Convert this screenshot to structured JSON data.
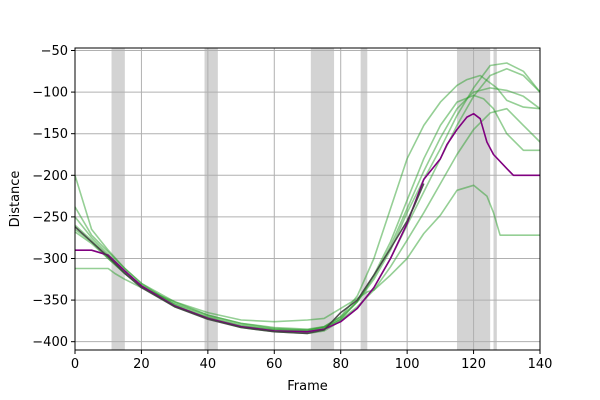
{
  "chart_data": {
    "type": "line",
    "xlabel": "Frame",
    "ylabel": "Distance",
    "xlim": [
      0,
      140
    ],
    "ylim": [
      -410,
      -47
    ],
    "grid": true,
    "xticks": [
      0,
      20,
      40,
      60,
      80,
      100,
      120,
      140
    ],
    "yticks": [
      -400,
      -350,
      -300,
      -250,
      -200,
      -150,
      -100,
      -50
    ],
    "shaded_regions": [
      [
        11,
        15
      ],
      [
        39,
        43
      ],
      [
        71,
        78
      ],
      [
        86,
        88
      ],
      [
        115,
        125
      ],
      [
        126,
        127
      ]
    ],
    "colors": {
      "green": "#2ca02c",
      "purple": "#800080",
      "dark": "#404040",
      "shade": "#d3d3d3",
      "grid": "#b0b0b0"
    },
    "series": [
      {
        "color": "green",
        "x": [
          0,
          5,
          10,
          15,
          20,
          30,
          40,
          50,
          60,
          70,
          75,
          80,
          85,
          90,
          95,
          100,
          105,
          110,
          115,
          118,
          122,
          127,
          130,
          135,
          140
        ],
        "y": [
          -200,
          -265,
          -290,
          -312,
          -330,
          -352,
          -368,
          -378,
          -383,
          -385,
          -382,
          -370,
          -345,
          -300,
          -240,
          -180,
          -140,
          -112,
          -92,
          -85,
          -80,
          -95,
          -110,
          -118,
          -120
        ]
      },
      {
        "color": "green",
        "x": [
          0,
          5,
          10,
          15,
          20,
          30,
          40,
          50,
          60,
          70,
          75,
          80,
          85,
          90,
          95,
          100,
          105,
          110,
          115,
          120,
          125,
          130,
          135,
          140
        ],
        "y": [
          -238,
          -272,
          -292,
          -312,
          -330,
          -356,
          -372,
          -382,
          -386,
          -387,
          -383,
          -372,
          -352,
          -325,
          -290,
          -245,
          -205,
          -168,
          -128,
          -95,
          -68,
          -65,
          -75,
          -100
        ]
      },
      {
        "color": "green",
        "x": [
          0,
          5,
          10,
          15,
          20,
          30,
          40,
          50,
          60,
          70,
          75,
          80,
          85,
          90,
          95,
          100,
          105,
          110,
          115,
          120,
          125,
          130,
          135,
          140
        ],
        "y": [
          -250,
          -275,
          -295,
          -315,
          -333,
          -358,
          -372,
          -383,
          -388,
          -390,
          -387,
          -375,
          -360,
          -335,
          -300,
          -260,
          -220,
          -180,
          -140,
          -105,
          -80,
          -72,
          -80,
          -100
        ]
      },
      {
        "color": "green",
        "x": [
          0,
          5,
          10,
          15,
          20,
          30,
          40,
          50,
          60,
          70,
          75,
          80,
          85,
          90,
          95,
          100,
          105,
          110,
          115,
          120,
          125,
          130,
          135,
          140
        ],
        "y": [
          -260,
          -278,
          -297,
          -316,
          -333,
          -355,
          -370,
          -380,
          -385,
          -386,
          -382,
          -370,
          -352,
          -322,
          -285,
          -240,
          -195,
          -155,
          -120,
          -100,
          -95,
          -98,
          -105,
          -120
        ]
      },
      {
        "color": "green",
        "x": [
          0,
          5,
          10,
          15,
          20,
          30,
          40,
          50,
          60,
          70,
          75,
          80,
          85,
          90,
          95,
          100,
          105,
          110,
          115,
          120,
          123,
          126,
          130,
          135,
          140
        ],
        "y": [
          -265,
          -280,
          -300,
          -318,
          -334,
          -357,
          -371,
          -381,
          -386,
          -388,
          -385,
          -373,
          -352,
          -320,
          -280,
          -230,
          -180,
          -140,
          -112,
          -104,
          -108,
          -120,
          -150,
          -170,
          -170
        ]
      },
      {
        "color": "green",
        "x": [
          0,
          5,
          10,
          15,
          20,
          30,
          40,
          50,
          60,
          70,
          75,
          80,
          85,
          90,
          95,
          100,
          105,
          110,
          115,
          120,
          125,
          130,
          135,
          140
        ],
        "y": [
          -268,
          -282,
          -300,
          -318,
          -332,
          -354,
          -368,
          -378,
          -384,
          -386,
          -383,
          -374,
          -358,
          -338,
          -310,
          -278,
          -245,
          -210,
          -175,
          -145,
          -125,
          -120,
          -140,
          -160
        ]
      },
      {
        "color": "green",
        "x": [
          0,
          5,
          10,
          12,
          15,
          20,
          30,
          40,
          50,
          60,
          70,
          75,
          80,
          85,
          88,
          90,
          95,
          100,
          105,
          110,
          115,
          120,
          124,
          126,
          128,
          130,
          140
        ],
        "y": [
          -312,
          -312,
          -312,
          -318,
          -325,
          -335,
          -352,
          -365,
          -374,
          -376,
          -374,
          -372,
          -360,
          -348,
          -340,
          -338,
          -320,
          -300,
          -270,
          -248,
          -218,
          -212,
          -225,
          -245,
          -272,
          -272,
          -272
        ]
      },
      {
        "color": "purple",
        "x": [
          0,
          5,
          10,
          15,
          20,
          30,
          40,
          50,
          60,
          70,
          75,
          80,
          85,
          90,
          95,
          100,
          105,
          110,
          112,
          115,
          118,
          120,
          122,
          124,
          126,
          130,
          132,
          135,
          140
        ],
        "y": [
          -290,
          -290,
          -296,
          -315,
          -333,
          -357,
          -372,
          -382,
          -387,
          -388,
          -385,
          -376,
          -360,
          -335,
          -300,
          -258,
          -205,
          -180,
          -163,
          -145,
          -130,
          -126,
          -132,
          -160,
          -175,
          -192,
          -200,
          -200,
          -200
        ]
      },
      {
        "color": "dark",
        "x": [
          0,
          5,
          10,
          15,
          20,
          30,
          40,
          50,
          60,
          70,
          75,
          80,
          85,
          90,
          95,
          100,
          102,
          105
        ],
        "y": [
          -262,
          -280,
          -298,
          -318,
          -335,
          -358,
          -373,
          -383,
          -388,
          -390,
          -386,
          -365,
          -350,
          -320,
          -288,
          -255,
          -238,
          -210
        ]
      }
    ]
  }
}
